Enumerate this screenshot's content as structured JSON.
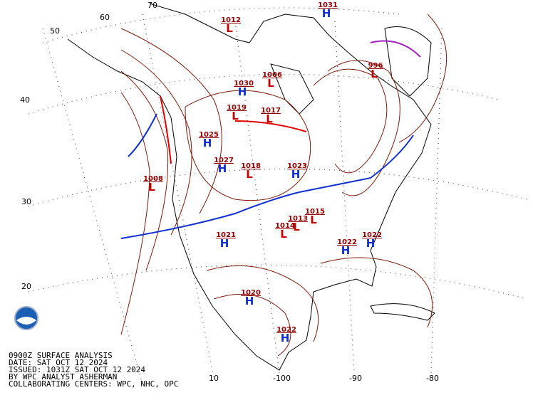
{
  "map": {
    "caption": [
      "0900Z SURFACE ANALYSIS",
      "DATE: SAT OCT 12 2024",
      "ISSUED: 1031Z SAT OCT 12 2024",
      "BY WPC ANALYST ASHERMAN",
      "COLLABORATING CENTERS: WPC, NHC, OPC"
    ],
    "grid_labels": [
      "60",
      "50",
      "40",
      "30",
      "20",
      "10",
      "-100",
      "-90",
      "-80",
      "70"
    ],
    "pressure_centers": [
      {
        "symbol": "L",
        "pressure": "1012",
        "color": "#c00000"
      },
      {
        "symbol": "H",
        "pressure": "1031",
        "color": "#1030d0"
      },
      {
        "symbol": "H",
        "pressure": "1030",
        "color": "#1030d0"
      },
      {
        "symbol": "L",
        "pressure": "1006",
        "color": "#c00000"
      },
      {
        "symbol": "L",
        "pressure": "1017",
        "color": "#c00000"
      },
      {
        "symbol": "L",
        "pressure": "1019",
        "color": "#c00000"
      },
      {
        "symbol": "H",
        "pressure": "1025",
        "color": "#1030d0"
      },
      {
        "symbol": "H",
        "pressure": "1027",
        "color": "#1030d0"
      },
      {
        "symbol": "L",
        "pressure": "1018",
        "color": "#c00000"
      },
      {
        "symbol": "H",
        "pressure": "1023",
        "color": "#1030d0"
      },
      {
        "symbol": "L",
        "pressure": "1008",
        "color": "#c00000"
      },
      {
        "symbol": "L",
        "pressure": "1015",
        "color": "#c00000"
      },
      {
        "symbol": "L",
        "pressure": "1013",
        "color": "#c00000"
      },
      {
        "symbol": "L",
        "pressure": "1014",
        "color": "#c00000"
      },
      {
        "symbol": "H",
        "pressure": "1021",
        "color": "#1030d0"
      },
      {
        "symbol": "H",
        "pressure": "1022",
        "color": "#1030d0"
      },
      {
        "symbol": "H",
        "pressure": "1022",
        "color": "#1030d0"
      },
      {
        "symbol": "H",
        "pressure": "1020",
        "color": "#1030d0"
      },
      {
        "symbol": "H",
        "pressure": "1022",
        "color": "#1030d0"
      },
      {
        "symbol": "L",
        "pressure": "996",
        "color": "#c00000"
      }
    ]
  }
}
